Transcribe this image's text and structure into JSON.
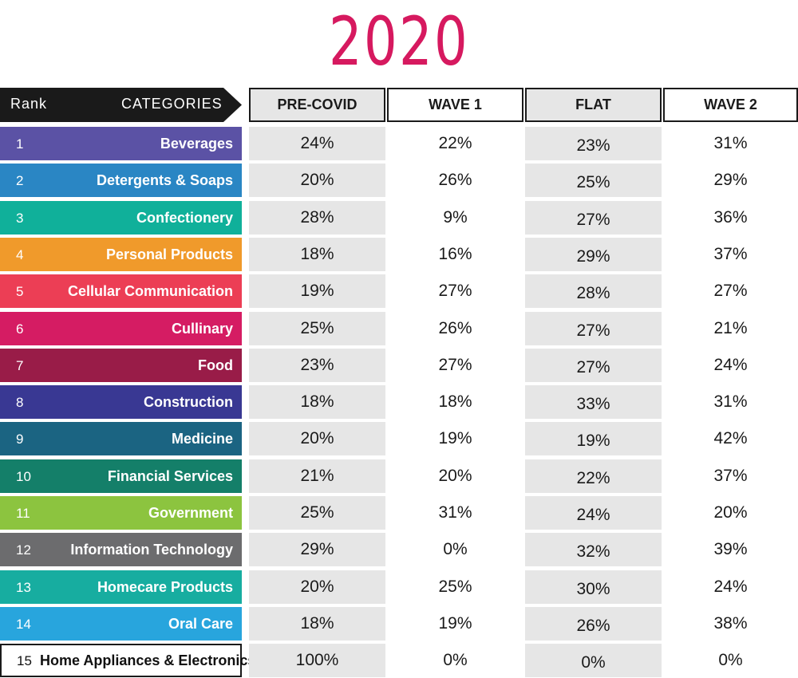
{
  "title": "2020",
  "header": {
    "rank_label": "Rank",
    "categories_label": "CATEGORIES"
  },
  "columns": [
    "PRE-COVID",
    "WAVE 1",
    "FLAT",
    "WAVE 2"
  ],
  "rows": [
    {
      "rank": "1",
      "category": "Beverages",
      "color": "#5b52a5",
      "values": [
        "24%",
        "22%",
        "23%",
        "31%"
      ]
    },
    {
      "rank": "2",
      "category": "Detergents & Soaps",
      "color": "#2a86c4",
      "values": [
        "20%",
        "26%",
        "25%",
        "29%"
      ]
    },
    {
      "rank": "3",
      "category": "Confectionery",
      "color": "#10b09a",
      "values": [
        "28%",
        "9%",
        "27%",
        "36%"
      ]
    },
    {
      "rank": "4",
      "category": "Personal Products",
      "color": "#f09a2b",
      "values": [
        "18%",
        "16%",
        "29%",
        "37%"
      ]
    },
    {
      "rank": "5",
      "category": "Cellular Communication",
      "color": "#ec3e55",
      "values": [
        "19%",
        "27%",
        "28%",
        "27%"
      ]
    },
    {
      "rank": "6",
      "category": "Cullinary",
      "color": "#d51c63",
      "values": [
        "25%",
        "26%",
        "27%",
        "21%"
      ]
    },
    {
      "rank": "7",
      "category": "Food",
      "color": "#991c48",
      "values": [
        "23%",
        "27%",
        "27%",
        "24%"
      ]
    },
    {
      "rank": "8",
      "category": "Construction",
      "color": "#393893",
      "values": [
        "18%",
        "18%",
        "33%",
        "31%"
      ]
    },
    {
      "rank": "9",
      "category": "Medicine",
      "color": "#1b6482",
      "values": [
        "20%",
        "19%",
        "19%",
        "42%"
      ]
    },
    {
      "rank": "10",
      "category": "Financial Services",
      "color": "#147f69",
      "values": [
        "21%",
        "20%",
        "22%",
        "37%"
      ]
    },
    {
      "rank": "11",
      "category": "Government",
      "color": "#8cc43f",
      "values": [
        "25%",
        "31%",
        "24%",
        "20%"
      ]
    },
    {
      "rank": "12",
      "category": "Information Technology",
      "color": "#6c6c6e",
      "values": [
        "29%",
        "0%",
        "32%",
        "39%"
      ]
    },
    {
      "rank": "13",
      "category": "Homecare Products",
      "color": "#17ada0",
      "values": [
        "20%",
        "25%",
        "30%",
        "24%"
      ]
    },
    {
      "rank": "14",
      "category": "Oral Care",
      "color": "#28a5dd",
      "values": [
        "18%",
        "19%",
        "26%",
        "38%"
      ]
    },
    {
      "rank": "15",
      "category": "Home Appliances & Electronics",
      "color": "#ffffff",
      "values": [
        "100%",
        "0%",
        "0%",
        "0%"
      ]
    }
  ],
  "colors": {
    "title": "#d6195f",
    "header_bg": "#1a1a1a",
    "shaded_cell": "#e6e6e6"
  },
  "chart_data": {
    "type": "table",
    "title": "2020",
    "columns": [
      "Rank",
      "CATEGORIES",
      "PRE-COVID",
      "WAVE 1",
      "FLAT",
      "WAVE 2"
    ],
    "categories": [
      "Beverages",
      "Detergents & Soaps",
      "Confectionery",
      "Personal Products",
      "Cellular Communication",
      "Cullinary",
      "Food",
      "Construction",
      "Medicine",
      "Financial Services",
      "Government",
      "Information Technology",
      "Homecare Products",
      "Oral Care",
      "Home Appliances & Electronics"
    ],
    "series": [
      {
        "name": "PRE-COVID",
        "values": [
          24,
          20,
          28,
          18,
          19,
          25,
          23,
          18,
          20,
          21,
          25,
          29,
          20,
          18,
          100
        ]
      },
      {
        "name": "WAVE 1",
        "values": [
          22,
          26,
          9,
          16,
          27,
          26,
          27,
          18,
          19,
          20,
          31,
          0,
          25,
          19,
          0
        ]
      },
      {
        "name": "FLAT",
        "values": [
          23,
          25,
          27,
          29,
          28,
          27,
          27,
          33,
          19,
          22,
          24,
          32,
          30,
          26,
          0
        ]
      },
      {
        "name": "WAVE 2",
        "values": [
          31,
          29,
          36,
          37,
          27,
          21,
          24,
          31,
          42,
          37,
          20,
          39,
          24,
          38,
          0
        ]
      }
    ]
  }
}
